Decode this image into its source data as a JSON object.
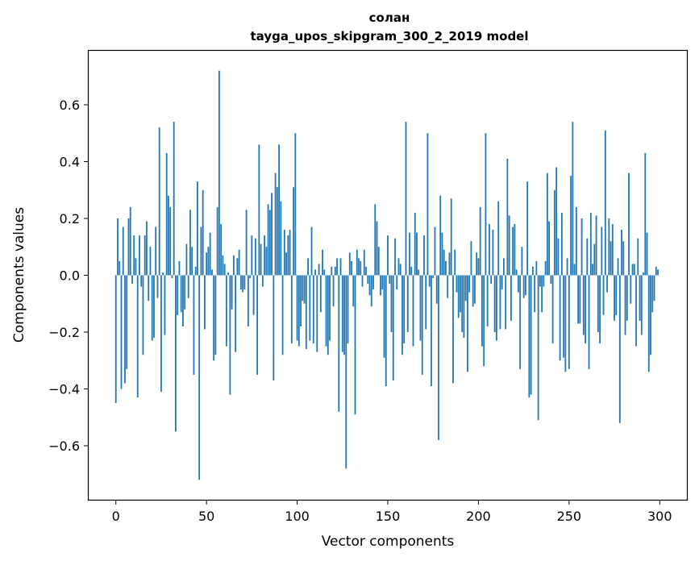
{
  "chart_data": {
    "type": "bar",
    "title": "солан",
    "subtitle": "tayga_upos_skipgram_300_2_2019 model",
    "xlabel": "Vector components",
    "ylabel": "Components values",
    "xlim": [
      -15,
      315
    ],
    "ylim": [
      -0.79,
      0.79
    ],
    "x_ticks": [
      0,
      50,
      100,
      150,
      200,
      250,
      300
    ],
    "y_ticks": [
      -0.6,
      -0.4,
      -0.2,
      0.0,
      0.2,
      0.4,
      0.6
    ],
    "y_tick_labels": [
      "−0.6",
      "−0.4",
      "−0.2",
      "0.0",
      "0.2",
      "0.4",
      "0.6"
    ],
    "grid": false,
    "bar_color": "#1f77b4",
    "x": [
      0,
      1,
      2,
      3,
      4,
      5,
      6,
      7,
      8,
      9,
      10,
      11,
      12,
      13,
      14,
      15,
      16,
      17,
      18,
      19,
      20,
      21,
      22,
      23,
      24,
      25,
      26,
      27,
      28,
      29,
      30,
      31,
      32,
      33,
      34,
      35,
      36,
      37,
      38,
      39,
      40,
      41,
      42,
      43,
      44,
      45,
      46,
      47,
      48,
      49,
      50,
      51,
      52,
      53,
      54,
      55,
      56,
      57,
      58,
      59,
      60,
      61,
      62,
      63,
      64,
      65,
      66,
      67,
      68,
      69,
      70,
      71,
      72,
      73,
      74,
      75,
      76,
      77,
      78,
      79,
      80,
      81,
      82,
      83,
      84,
      85,
      86,
      87,
      88,
      89,
      90,
      91,
      92,
      93,
      94,
      95,
      96,
      97,
      98,
      99,
      100,
      101,
      102,
      103,
      104,
      105,
      106,
      107,
      108,
      109,
      110,
      111,
      112,
      113,
      114,
      115,
      116,
      117,
      118,
      119,
      120,
      121,
      122,
      123,
      124,
      125,
      126,
      127,
      128,
      129,
      130,
      131,
      132,
      133,
      134,
      135,
      136,
      137,
      138,
      139,
      140,
      141,
      142,
      143,
      144,
      145,
      146,
      147,
      148,
      149,
      150,
      151,
      152,
      153,
      154,
      155,
      156,
      157,
      158,
      159,
      160,
      161,
      162,
      163,
      164,
      165,
      166,
      167,
      168,
      169,
      170,
      171,
      172,
      173,
      174,
      175,
      176,
      177,
      178,
      179,
      180,
      181,
      182,
      183,
      184,
      185,
      186,
      187,
      188,
      189,
      190,
      191,
      192,
      193,
      194,
      195,
      196,
      197,
      198,
      199,
      200,
      201,
      202,
      203,
      204,
      205,
      206,
      207,
      208,
      209,
      210,
      211,
      212,
      213,
      214,
      215,
      216,
      217,
      218,
      219,
      220,
      221,
      222,
      223,
      224,
      225,
      226,
      227,
      228,
      229,
      230,
      231,
      232,
      233,
      234,
      235,
      236,
      237,
      238,
      239,
      240,
      241,
      242,
      243,
      244,
      245,
      246,
      247,
      248,
      249,
      250,
      251,
      252,
      253,
      254,
      255,
      256,
      257,
      258,
      259,
      260,
      261,
      262,
      263,
      264,
      265,
      266,
      267,
      268,
      269,
      270,
      271,
      272,
      273,
      274,
      275,
      276,
      277,
      278,
      279,
      280,
      281,
      282,
      283,
      284,
      285,
      286,
      287,
      288,
      289,
      290,
      291,
      292,
      293,
      294,
      295,
      296,
      297,
      298,
      299
    ],
    "values": [
      -0.45,
      0.2,
      0.05,
      -0.4,
      0.17,
      -0.38,
      -0.33,
      0.2,
      0.24,
      -0.03,
      0.14,
      0.06,
      -0.43,
      0.14,
      -0.04,
      -0.28,
      0.14,
      0.19,
      -0.09,
      0.1,
      -0.23,
      -0.22,
      0.17,
      -0.08,
      0.52,
      -0.41,
      0.01,
      -0.21,
      0.43,
      0.28,
      0.24,
      -0.01,
      0.54,
      -0.55,
      -0.14,
      0.05,
      -0.13,
      -0.18,
      -0.12,
      0.11,
      -0.08,
      0.23,
      0.1,
      -0.35,
      0.03,
      0.33,
      -0.72,
      0.17,
      0.3,
      -0.19,
      0.08,
      0.1,
      0.15,
      0.02,
      -0.3,
      -0.28,
      0.24,
      0.72,
      0.18,
      0.07,
      0.04,
      -0.25,
      0.01,
      -0.42,
      -0.12,
      0.07,
      -0.27,
      0.06,
      0.09,
      -0.05,
      -0.06,
      -0.05,
      0.23,
      -0.18,
      -0.01,
      0.14,
      -0.14,
      0.13,
      -0.35,
      0.46,
      0.11,
      -0.04,
      0.14,
      0.1,
      0.25,
      0.23,
      0.29,
      -0.37,
      0.36,
      0.31,
      0.46,
      0.26,
      -0.28,
      0.16,
      0.08,
      0.14,
      0.16,
      -0.24,
      0.31,
      0.5,
      -0.23,
      -0.25,
      -0.18,
      -0.09,
      -0.1,
      -0.26,
      0.06,
      -0.23,
      0.17,
      -0.24,
      0.02,
      -0.27,
      0.04,
      -0.13,
      0.09,
      0.02,
      -0.25,
      -0.28,
      -0.23,
      0.03,
      -0.11,
      0.03,
      0.06,
      -0.48,
      0.06,
      -0.27,
      -0.28,
      -0.68,
      -0.24,
      0.08,
      0.05,
      -0.11,
      -0.49,
      0.09,
      0.06,
      0.05,
      -0.04,
      0.09,
      0.03,
      -0.03,
      -0.07,
      -0.11,
      -0.05,
      0.25,
      0.19,
      0.1,
      -0.07,
      -0.05,
      -0.29,
      -0.39,
      0.14,
      -0.03,
      -0.2,
      -0.37,
      0.13,
      -0.05,
      0.06,
      0.04,
      -0.28,
      -0.24,
      0.54,
      -0.2,
      0.15,
      0.03,
      -0.25,
      0.22,
      0.15,
      0.02,
      -0.23,
      -0.35,
      0.14,
      -0.19,
      0.5,
      -0.04,
      -0.39,
      -0.01,
      0.17,
      -0.1,
      -0.58,
      0.28,
      0.15,
      0.09,
      0.05,
      -0.08,
      0.08,
      0.27,
      -0.38,
      0.09,
      -0.06,
      -0.15,
      -0.13,
      -0.2,
      -0.22,
      -0.09,
      -0.34,
      -0.06,
      0.12,
      -0.11,
      -0.1,
      0.08,
      0.06,
      0.24,
      -0.25,
      -0.32,
      0.5,
      -0.18,
      0.18,
      -0.03,
      0.16,
      -0.2,
      -0.23,
      0.26,
      -0.19,
      -0.05,
      0.06,
      -0.19,
      0.41,
      0.21,
      -0.16,
      0.17,
      0.18,
      0.02,
      -0.06,
      -0.33,
      0.1,
      -0.08,
      -0.07,
      0.33,
      -0.43,
      -0.42,
      0.03,
      -0.13,
      0.05,
      -0.51,
      -0.04,
      -0.13,
      -0.04,
      0.05,
      0.36,
      0.19,
      -0.03,
      -0.24,
      0.3,
      0.38,
      0.13,
      -0.3,
      0.22,
      -0.29,
      -0.34,
      0.06,
      -0.33,
      0.35,
      0.54,
      0.04,
      0.24,
      -0.17,
      -0.17,
      0.2,
      -0.21,
      -0.24,
      0.13,
      -0.33,
      0.22,
      0.04,
      0.11,
      0.21,
      -0.2,
      -0.24,
      0.17,
      -0.14,
      0.51,
      -0.06,
      0.2,
      0.12,
      0.18,
      -0.16,
      -0.14,
      0.06,
      -0.52,
      0.16,
      0.12,
      -0.21,
      -0.16,
      0.36,
      -0.1,
      0.04,
      0.04,
      -0.25,
      0.13,
      -0.16,
      -0.21,
      0.01,
      0.43,
      0.15,
      -0.34,
      -0.28,
      -0.13,
      -0.09,
      0.03,
      0.02
    ]
  }
}
